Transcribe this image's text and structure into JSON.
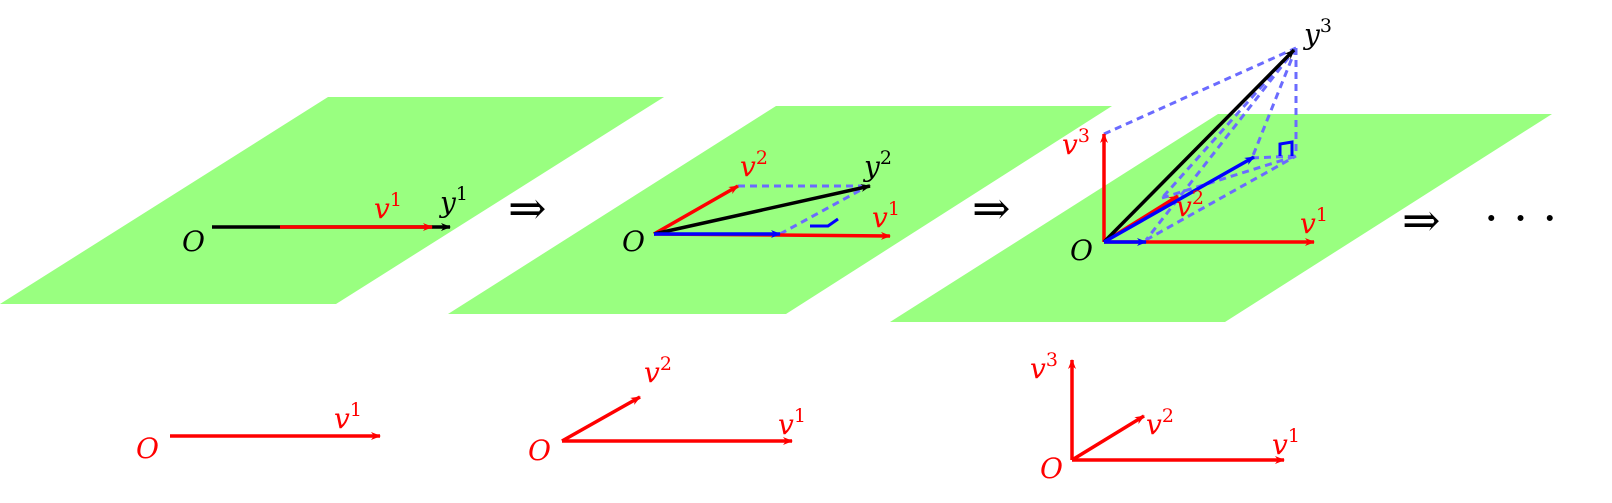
{
  "colors": {
    "plane": "#99ff80",
    "red": "#ff0000",
    "blue": "#0000ff",
    "black": "#000000",
    "dash_blue": "#6b6bff"
  },
  "labels": {
    "origin": "O",
    "v": "v",
    "y": "y",
    "one": "1",
    "two": "2",
    "three": "3"
  },
  "symbols": {
    "implies": "⇒",
    "ellipsis": "· · ·"
  }
}
